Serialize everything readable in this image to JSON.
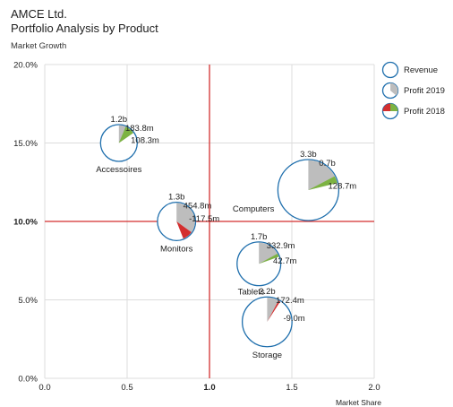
{
  "chart_data": {
    "type": "bubble-pie",
    "title": "AMCE Ltd.",
    "subtitle": "Portfolio Analysis by Product",
    "ylabel": "Market Growth",
    "xlabel": "Market Share",
    "xlim": [
      0,
      2.0
    ],
    "ylim": [
      0,
      20
    ],
    "x_ticks": [
      "0.0",
      "0.5",
      "1.0",
      "1.5",
      "2.0"
    ],
    "y_ticks": [
      "0.0%",
      "5.0%",
      "10.0%",
      "15.0%",
      "20.0%"
    ],
    "x_divider": 1.0,
    "y_divider": 10.0,
    "grid": true,
    "legend_position": "right",
    "legend": [
      {
        "label": "Revenue",
        "kind": "revenue"
      },
      {
        "label": "Profit 2019",
        "kind": "profit2019"
      },
      {
        "label": "Profit 2018",
        "kind": "profit2018"
      }
    ],
    "colors": {
      "revenue_ring": "#1f6fad",
      "profit2019": "#bdbdbd",
      "profit2018_positive": "#7cb342",
      "profit2018_negative": "#d32f2f",
      "divider": "#d32f2f",
      "grid": "#dcdcdc"
    },
    "points": [
      {
        "name": "Accessoires",
        "x": 0.45,
        "y": 15.0,
        "revenue": 1.2,
        "revenue_label": "1.2b",
        "profit2019": 183.8,
        "profit2019_label": "183.8m",
        "profit2018": 108.3,
        "profit2018_label": "108.3m",
        "name_pos": "below"
      },
      {
        "name": "Computers",
        "x": 1.6,
        "y": 12.0,
        "revenue": 3.3,
        "revenue_label": "3.3b",
        "profit2019": 700,
        "profit2019_label": "0.7b",
        "profit2018": 128.7,
        "profit2018_label": "128.7m",
        "name_pos": "left"
      },
      {
        "name": "Monitors",
        "x": 0.8,
        "y": 10.0,
        "revenue": 1.3,
        "revenue_label": "1.3b",
        "profit2019": 454.8,
        "profit2019_label": "454.8m",
        "profit2018": -117.5,
        "profit2018_label": "-117.5m",
        "name_pos": "below"
      },
      {
        "name": "Tablets",
        "x": 1.3,
        "y": 7.3,
        "revenue": 1.7,
        "revenue_label": "1.7b",
        "profit2019": 332.9,
        "profit2019_label": "332.9m",
        "profit2018": 42.7,
        "profit2018_label": "42.7m",
        "name_pos": "below-left"
      },
      {
        "name": "Storage",
        "x": 1.35,
        "y": 3.6,
        "revenue": 2.2,
        "revenue_label": "2.2b",
        "profit2019": 172.4,
        "profit2019_label": "172.4m",
        "profit2018": -9.0,
        "profit2018_label": "-9.0m",
        "name_pos": "below"
      }
    ]
  }
}
